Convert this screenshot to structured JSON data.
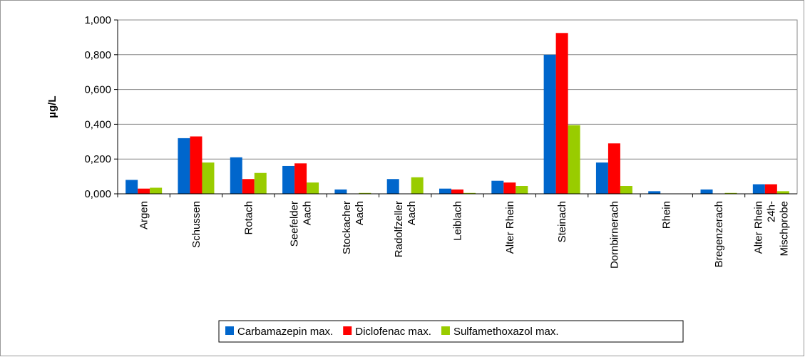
{
  "chart_data": {
    "type": "bar",
    "y_label": "µg/L",
    "categories": [
      "Argen",
      "Schussen",
      "Rotach",
      "Seefelder\nAach",
      "Stockacher\nAach",
      "Radolfzeller\nAach",
      "Leiblach",
      "Alter Rhein",
      "Steinach",
      "Dornbirnerach",
      "Rhein",
      "Bregenzerach",
      "Alter Rhein\n24h-\nMischprobe"
    ],
    "series": [
      {
        "name": "Carbamazepin max.",
        "color": "#0066cc",
        "values": [
          0.08,
          0.32,
          0.21,
          0.16,
          0.025,
          0.085,
          0.03,
          0.075,
          0.8,
          0.18,
          0.015,
          0.025,
          0.055
        ]
      },
      {
        "name": "Diclofenac max.",
        "color": "#ff0000",
        "values": [
          0.03,
          0.33,
          0.085,
          0.175,
          0,
          0,
          0.025,
          0.065,
          0.925,
          0.29,
          0,
          0,
          0.055
        ]
      },
      {
        "name": "Sulfamethoxazol max.",
        "color": "#99cc00",
        "values": [
          0.035,
          0.18,
          0.12,
          0.065,
          0.005,
          0.095,
          0.005,
          0.045,
          0.395,
          0.045,
          0,
          0.005,
          0.015
        ]
      }
    ],
    "ylim": [
      0,
      1
    ],
    "yticks": [
      {
        "value": 0,
        "label": "0,000"
      },
      {
        "value": 0.2,
        "label": "0,200"
      },
      {
        "value": 0.4,
        "label": "0,400"
      },
      {
        "value": 0.6,
        "label": "0,600"
      },
      {
        "value": 0.8,
        "label": "0,800"
      },
      {
        "value": 1,
        "label": "1,000"
      }
    ],
    "grid": true,
    "legend": "bottom"
  }
}
